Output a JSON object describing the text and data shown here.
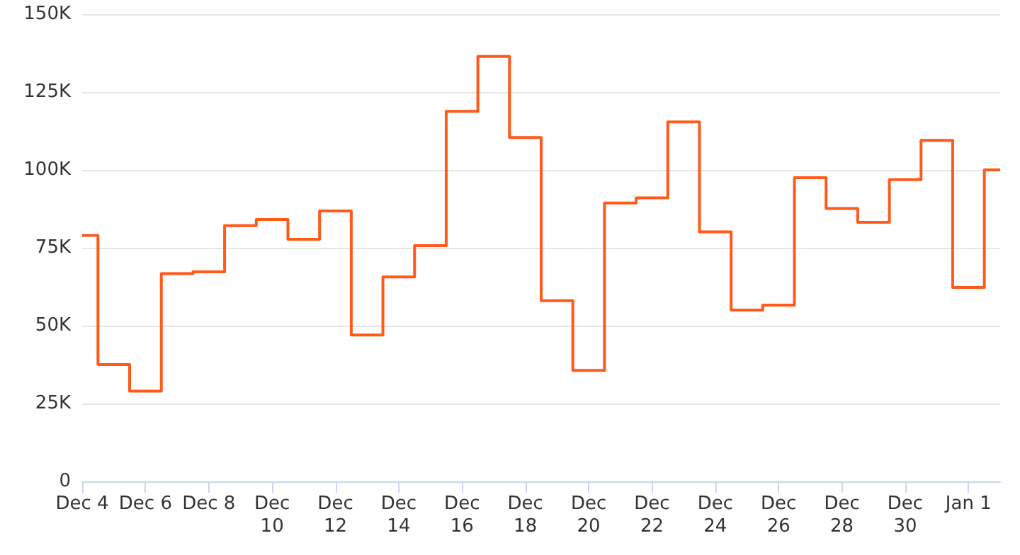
{
  "chart_data": {
    "type": "step",
    "categories": [
      "Dec 4",
      null,
      "Dec 6",
      null,
      "Dec 8",
      null,
      "Dec 10",
      null,
      "Dec 12",
      null,
      "Dec 14",
      null,
      "Dec 16",
      null,
      "Dec 18",
      null,
      "Dec 20",
      null,
      "Dec 22",
      null,
      "Dec 24",
      null,
      "Dec 26",
      null,
      "Dec 28",
      null,
      "Dec 30",
      null,
      "Jan 1",
      null
    ],
    "series": [
      {
        "color": "#ff5a1a",
        "values": [
          79000,
          37500,
          29000,
          66700,
          67300,
          82100,
          84100,
          77700,
          86800,
          47000,
          65600,
          75700,
          118800,
          136400,
          110400,
          58000,
          35600,
          89400,
          91000,
          115400,
          80100,
          55000,
          56600,
          97500,
          87600,
          83200,
          96900,
          109500,
          62300,
          100000
        ]
      }
    ],
    "ylim": [
      0,
      150000
    ],
    "yticks": [
      0,
      {
        "value": 25000,
        "label": "25K"
      },
      {
        "value": 50000,
        "label": "50K"
      },
      {
        "value": 75000,
        "label": "75K"
      },
      {
        "value": 100000,
        "label": "100K"
      },
      {
        "value": 125000,
        "label": "125K"
      },
      {
        "value": 150000,
        "label": "150K"
      }
    ],
    "grid": "y",
    "marker": "none",
    "line_style": "solid"
  }
}
